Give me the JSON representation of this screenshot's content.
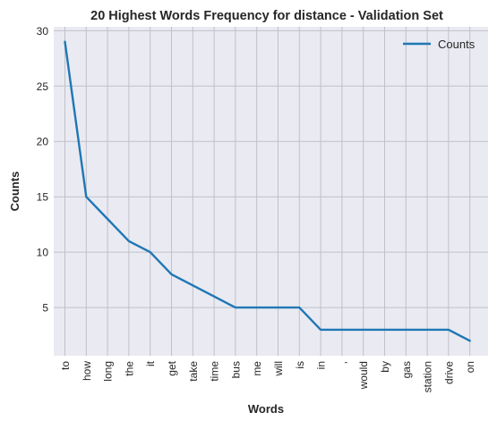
{
  "chart_data": {
    "type": "line",
    "title": "20 Highest Words Frequency for distance - Validation Set",
    "xlabel": "Words",
    "ylabel": "Counts",
    "categories": [
      "to",
      "how",
      "long",
      "the",
      "it",
      "get",
      "take",
      "time",
      "bus",
      "me",
      "will",
      "is",
      "in",
      ",",
      "would",
      "by",
      "gas",
      "station",
      "drive",
      "on"
    ],
    "series": [
      {
        "name": "Counts",
        "values": [
          29,
          15,
          13,
          11,
          10,
          8,
          7,
          6,
          5,
          5,
          5,
          5,
          3,
          3,
          3,
          3,
          3,
          3,
          3,
          2
        ]
      }
    ],
    "yticks": [
      "5",
      "10",
      "15",
      "20",
      "25",
      "30"
    ],
    "ylim": [
      0.65,
      30.35
    ],
    "grid": true,
    "legend_position": "top-right",
    "colors": {
      "line": "#1f77b4",
      "axes_bg": "#eaeaf2",
      "grid": "#c0c0c8",
      "text": "#262626"
    }
  }
}
